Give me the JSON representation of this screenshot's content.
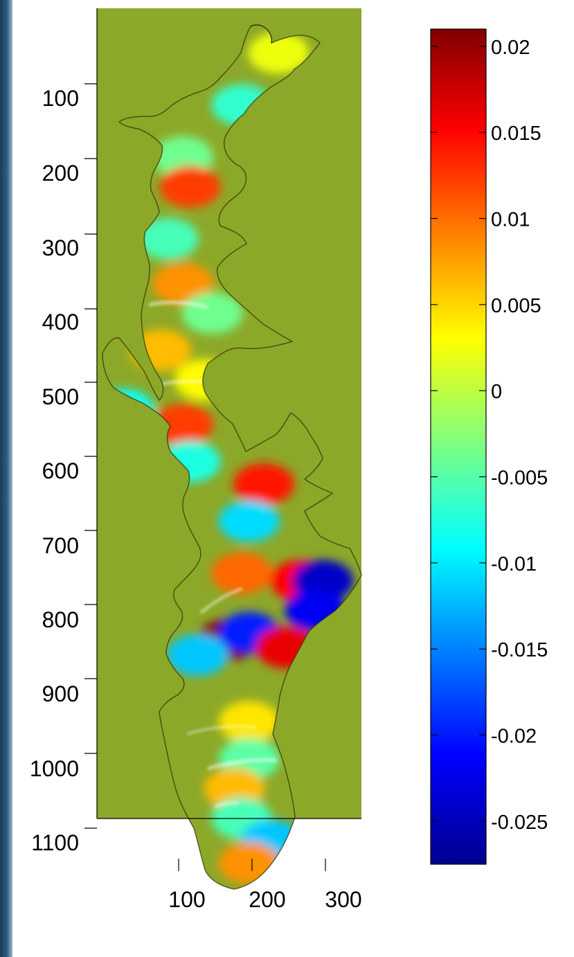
{
  "chart_data": {
    "type": "heatmap",
    "title": "",
    "xlabel": "",
    "ylabel": "",
    "x_ticks": [
      100,
      200,
      300
    ],
    "y_ticks": [
      100,
      200,
      300,
      400,
      500,
      600,
      700,
      800,
      900,
      1000,
      1100
    ],
    "xlim": [
      0,
      350
    ],
    "ylim": [
      0,
      1190
    ],
    "y_reversed": true,
    "colorbar": {
      "ticks": [
        0.02,
        0.015,
        0.01,
        0.005,
        0,
        -0.005,
        -0.01,
        -0.015,
        -0.02,
        -0.025
      ],
      "tick_labels": [
        "0.02",
        "0.015",
        "0.01",
        "0.005",
        "0",
        "-0.005",
        "-0.01",
        "-0.015",
        "-0.02",
        "-0.025"
      ],
      "range": [
        -0.0275,
        0.021
      ],
      "colormap": "jet"
    },
    "background_value": 0,
    "background_color": "#8ca828",
    "grid": false,
    "regions": [
      {
        "x": 240,
        "y": 60,
        "value": 0.002
      },
      {
        "x": 190,
        "y": 130,
        "value": -0.007
      },
      {
        "x": 110,
        "y": 200,
        "value": -0.004
      },
      {
        "x": 120,
        "y": 240,
        "value": 0.012
      },
      {
        "x": 90,
        "y": 310,
        "value": -0.006
      },
      {
        "x": 110,
        "y": 370,
        "value": 0.008
      },
      {
        "x": 150,
        "y": 410,
        "value": -0.004
      },
      {
        "x": 80,
        "y": 460,
        "value": 0.006
      },
      {
        "x": 140,
        "y": 500,
        "value": 0.003
      },
      {
        "x": 30,
        "y": 540,
        "value": -0.009
      },
      {
        "x": 110,
        "y": 560,
        "value": 0.012
      },
      {
        "x": 120,
        "y": 610,
        "value": -0.008
      },
      {
        "x": 220,
        "y": 640,
        "value": 0.014
      },
      {
        "x": 200,
        "y": 690,
        "value": -0.011
      },
      {
        "x": 190,
        "y": 760,
        "value": 0.01
      },
      {
        "x": 270,
        "y": 770,
        "value": 0.015
      },
      {
        "x": 300,
        "y": 770,
        "value": -0.024
      },
      {
        "x": 290,
        "y": 810,
        "value": -0.022
      },
      {
        "x": 170,
        "y": 850,
        "value": 0.021
      },
      {
        "x": 200,
        "y": 840,
        "value": -0.02
      },
      {
        "x": 130,
        "y": 870,
        "value": -0.012
      },
      {
        "x": 250,
        "y": 860,
        "value": 0.016
      },
      {
        "x": 200,
        "y": 960,
        "value": 0.004
      },
      {
        "x": 200,
        "y": 1010,
        "value": -0.005
      },
      {
        "x": 180,
        "y": 1050,
        "value": 0.006
      },
      {
        "x": 190,
        "y": 1090,
        "value": -0.006
      },
      {
        "x": 230,
        "y": 1120,
        "value": -0.012
      },
      {
        "x": 200,
        "y": 1150,
        "value": 0.008
      }
    ]
  }
}
